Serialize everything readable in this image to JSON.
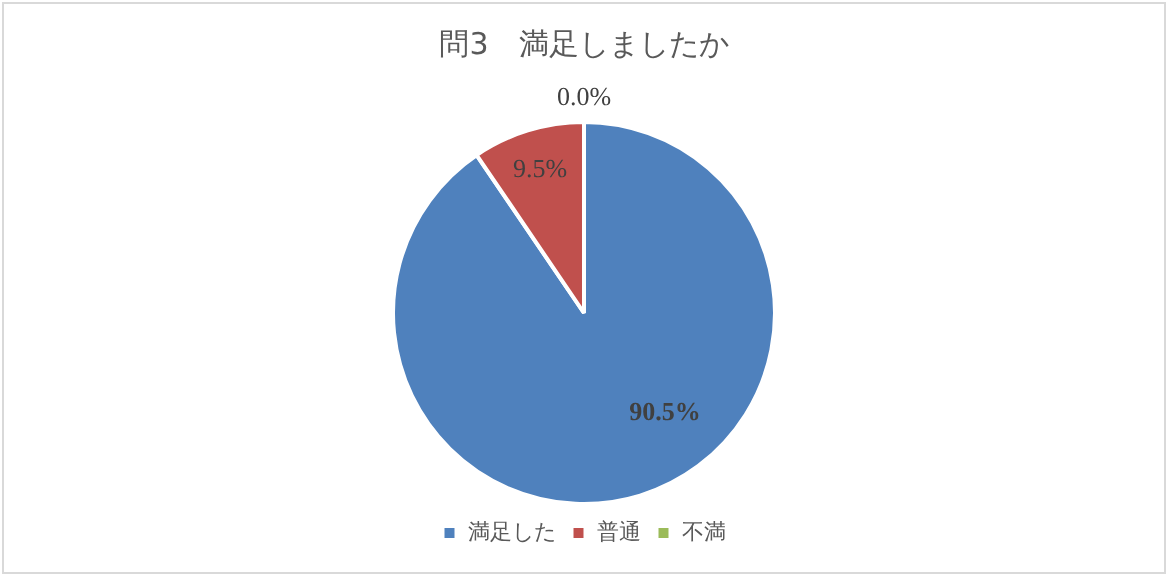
{
  "chart_data": {
    "type": "pie",
    "title": "問3　満足しましたか",
    "categories": [
      "満足した",
      "普通",
      "不満"
    ],
    "values": [
      90.5,
      9.5,
      0.0
    ],
    "colors": [
      "#4f81bd",
      "#c0504d",
      "#9bbb59"
    ],
    "value_labels": [
      "90.5%",
      "9.5%",
      "0.0%"
    ],
    "legend": "bottom"
  }
}
